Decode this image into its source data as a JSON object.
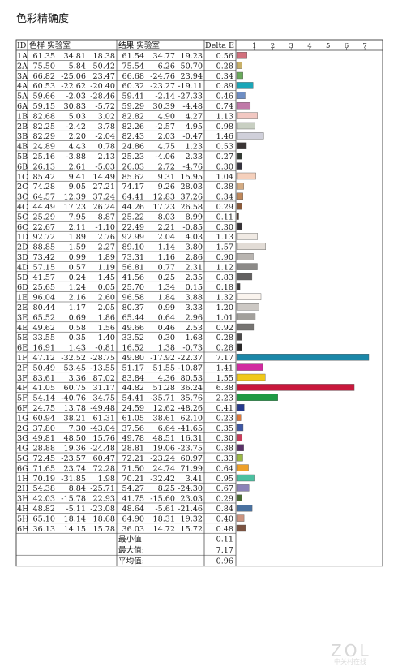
{
  "title": "色彩精确度",
  "watermark": "ZOL",
  "watermark_sub": "中关村在线",
  "headers": {
    "id": "ID",
    "sample": "色样 实验室",
    "result": "结果 实验室",
    "delta": "Delta E"
  },
  "summary": [
    {
      "label": "最小值",
      "value": "0.11"
    },
    {
      "label": "最大值:",
      "value": "7.17"
    },
    {
      "label": "平均值:",
      "value": "0.96"
    }
  ],
  "rows": [
    {
      "id": "1A",
      "s": [
        "61.35",
        "34.81",
        "18.38"
      ],
      "r": [
        "61.54",
        "34.77",
        "19.23"
      ],
      "d": "0.56",
      "color": "#d2707c"
    },
    {
      "id": "2A",
      "s": [
        "75.50",
        "5.84",
        "50.42"
      ],
      "r": [
        "75.54",
        "6.26",
        "50.70"
      ],
      "d": "0.28",
      "color": "#c8b068"
    },
    {
      "id": "3A",
      "s": [
        "66.82",
        "-25.06",
        "23.47"
      ],
      "r": [
        "66.68",
        "-24.76",
        "23.94"
      ],
      "d": "0.34",
      "color": "#6aaa5c"
    },
    {
      "id": "4A",
      "s": [
        "60.53",
        "-22.62",
        "-20.40"
      ],
      "r": [
        "60.32",
        "-23.27",
        "-19.11"
      ],
      "d": "0.89",
      "color": "#1aa6b8"
    },
    {
      "id": "5A",
      "s": [
        "59.66",
        "-2.03",
        "-28.46"
      ],
      "r": [
        "59.41",
        "-2.14",
        "-27.33"
      ],
      "d": "0.46",
      "color": "#6e8ec4"
    },
    {
      "id": "6A",
      "s": [
        "59.15",
        "30.83",
        "-5.72"
      ],
      "r": [
        "59.29",
        "30.39",
        "-4.48"
      ],
      "d": "0.74",
      "color": "#c07aa8"
    },
    {
      "id": "1B",
      "s": [
        "82.68",
        "5.03",
        "3.02"
      ],
      "r": [
        "82.82",
        "4.90",
        "4.27"
      ],
      "d": "1.13",
      "color": "#f2c8c2"
    },
    {
      "id": "2B",
      "s": [
        "82.25",
        "-2.42",
        "3.78"
      ],
      "r": [
        "82.26",
        "-2.57",
        "4.95"
      ],
      "d": "0.98",
      "color": "#c8cfc2"
    },
    {
      "id": "3B",
      "s": [
        "82.29",
        "2.20",
        "-2.04"
      ],
      "r": [
        "82.43",
        "2.03",
        "-0.47"
      ],
      "d": "1.46",
      "color": "#d0d0da"
    },
    {
      "id": "4B",
      "s": [
        "24.89",
        "4.43",
        "0.78"
      ],
      "r": [
        "24.86",
        "4.75",
        "1.23"
      ],
      "d": "0.53",
      "color": "#3a3434"
    },
    {
      "id": "5B",
      "s": [
        "25.16",
        "-3.88",
        "2.13"
      ],
      "r": [
        "25.23",
        "-4.06",
        "2.33"
      ],
      "d": "0.27",
      "color": "#333a33"
    },
    {
      "id": "6B",
      "s": [
        "26.13",
        "2.61",
        "-5.03"
      ],
      "r": [
        "26.03",
        "2.72",
        "-4.76"
      ],
      "d": "0.30",
      "color": "#36343e"
    },
    {
      "id": "1C",
      "s": [
        "85.42",
        "9.41",
        "14.49"
      ],
      "r": [
        "85.62",
        "9.31",
        "15.95"
      ],
      "d": "1.04",
      "color": "#f5d0bc"
    },
    {
      "id": "2C",
      "s": [
        "74.28",
        "9.05",
        "27.21"
      ],
      "r": [
        "74.17",
        "9.26",
        "28.03"
      ],
      "d": "0.38",
      "color": "#d4ac84"
    },
    {
      "id": "3C",
      "s": [
        "64.57",
        "12.39",
        "37.24"
      ],
      "r": [
        "64.41",
        "12.83",
        "37.26"
      ],
      "d": "0.34",
      "color": "#c0885a"
    },
    {
      "id": "4C",
      "s": [
        "44.49",
        "17.23",
        "26.24"
      ],
      "r": [
        "44.26",
        "17.23",
        "26.58"
      ],
      "d": "0.29",
      "color": "#8a5a3a"
    },
    {
      "id": "5C",
      "s": [
        "25.29",
        "7.95",
        "8.87"
      ],
      "r": [
        "25.22",
        "8.03",
        "8.99"
      ],
      "d": "0.11",
      "color": "#4a3228"
    },
    {
      "id": "6C",
      "s": [
        "22.67",
        "2.11",
        "-1.10"
      ],
      "r": [
        "22.49",
        "2.21",
        "-0.85"
      ],
      "d": "0.30",
      "color": "#363236"
    },
    {
      "id": "1D",
      "s": [
        "92.72",
        "1.89",
        "2.76"
      ],
      "r": [
        "92.99",
        "2.04",
        "4.03"
      ],
      "d": "1.13",
      "color": "#f0eae4"
    },
    {
      "id": "2D",
      "s": [
        "88.85",
        "1.59",
        "2.27"
      ],
      "r": [
        "89.10",
        "1.14",
        "3.80"
      ],
      "d": "1.57",
      "color": "#e2dcd6"
    },
    {
      "id": "3D",
      "s": [
        "73.42",
        "0.99",
        "1.89"
      ],
      "r": [
        "73.31",
        "1.16",
        "2.86"
      ],
      "d": "0.90",
      "color": "#b8b4b0"
    },
    {
      "id": "4D",
      "s": [
        "57.15",
        "0.57",
        "1.19"
      ],
      "r": [
        "56.81",
        "0.77",
        "2.31"
      ],
      "d": "1.12",
      "color": "#8c8a88"
    },
    {
      "id": "5D",
      "s": [
        "41.57",
        "0.24",
        "1.45"
      ],
      "r": [
        "41.56",
        "0.25",
        "2.35"
      ],
      "d": "0.83",
      "color": "#626060"
    },
    {
      "id": "6D",
      "s": [
        "25.65",
        "1.24",
        "0.05"
      ],
      "r": [
        "25.70",
        "1.34",
        "0.15"
      ],
      "d": "0.18",
      "color": "#3c3a3a"
    },
    {
      "id": "1E",
      "s": [
        "96.04",
        "2.16",
        "2.60"
      ],
      "r": [
        "96.58",
        "1.84",
        "3.88"
      ],
      "d": "1.32",
      "color": "#faf4ee"
    },
    {
      "id": "2E",
      "s": [
        "80.44",
        "1.17",
        "2.05"
      ],
      "r": [
        "80.37",
        "0.99",
        "3.33"
      ],
      "d": "1.20",
      "color": "#ccc8c4"
    },
    {
      "id": "3E",
      "s": [
        "65.52",
        "0.69",
        "1.86"
      ],
      "r": [
        "65.44",
        "0.64",
        "2.96"
      ],
      "d": "1.01",
      "color": "#a2a09c"
    },
    {
      "id": "4E",
      "s": [
        "49.62",
        "0.58",
        "1.56"
      ],
      "r": [
        "49.66",
        "0.46",
        "2.53"
      ],
      "d": "0.92",
      "color": "#767472"
    },
    {
      "id": "5E",
      "s": [
        "33.55",
        "0.35",
        "1.40"
      ],
      "r": [
        "33.52",
        "0.30",
        "1.68"
      ],
      "d": "0.28",
      "color": "#4c4a4a"
    },
    {
      "id": "6E",
      "s": [
        "16.91",
        "1.43",
        "-0.81"
      ],
      "r": [
        "16.52",
        "1.38",
        "-0.73"
      ],
      "d": "0.28",
      "color": "#2a2828"
    },
    {
      "id": "1F",
      "s": [
        "47.12",
        "-32.52",
        "-28.75"
      ],
      "r": [
        "49.80",
        "-17.92",
        "-22.37"
      ],
      "d": "7.17",
      "color": "#1b87a8"
    },
    {
      "id": "2F",
      "s": [
        "50.49",
        "53.45",
        "-13.55"
      ],
      "r": [
        "51.17",
        "51.55",
        "-10.87"
      ],
      "d": "1.41",
      "color": "#d22aa0"
    },
    {
      "id": "3F",
      "s": [
        "83.61",
        "3.36",
        "87.02"
      ],
      "r": [
        "83.84",
        "4.36",
        "80.53"
      ],
      "d": "1.55",
      "color": "#f0c818"
    },
    {
      "id": "4F",
      "s": [
        "41.05",
        "60.75",
        "31.17"
      ],
      "r": [
        "44.82",
        "51.28",
        "36.24"
      ],
      "d": "6.38",
      "color": "#c8183c"
    },
    {
      "id": "5F",
      "s": [
        "54.14",
        "-40.76",
        "34.75"
      ],
      "r": [
        "54.41",
        "-35.71",
        "35.76"
      ],
      "d": "2.23",
      "color": "#1e9a44"
    },
    {
      "id": "6F",
      "s": [
        "24.75",
        "13.78",
        "-49.48"
      ],
      "r": [
        "24.59",
        "12.62",
        "-48.26"
      ],
      "d": "0.41",
      "color": "#263a8e"
    },
    {
      "id": "1G",
      "s": [
        "60.94",
        "38.21",
        "61.31"
      ],
      "r": [
        "61.05",
        "38.61",
        "62.10"
      ],
      "d": "0.23",
      "color": "#e0783a"
    },
    {
      "id": "2G",
      "s": [
        "37.80",
        "7.30",
        "-43.04"
      ],
      "r": [
        "37.56",
        "6.64",
        "-41.65"
      ],
      "d": "0.35",
      "color": "#3e58a6"
    },
    {
      "id": "3G",
      "s": [
        "49.81",
        "48.50",
        "15.76"
      ],
      "r": [
        "49.78",
        "48.51",
        "16.31"
      ],
      "d": "0.30",
      "color": "#c83c5a"
    },
    {
      "id": "4G",
      "s": [
        "28.88",
        "19.36",
        "-24.48"
      ],
      "r": [
        "28.81",
        "19.06",
        "-23.75"
      ],
      "d": "0.38",
      "color": "#5a3268"
    },
    {
      "id": "5G",
      "s": [
        "72.45",
        "-23.57",
        "60.47"
      ],
      "r": [
        "72.21",
        "-23.24",
        "60.97"
      ],
      "d": "0.33",
      "color": "#9cba44"
    },
    {
      "id": "6G",
      "s": [
        "71.65",
        "23.74",
        "72.28"
      ],
      "r": [
        "71.50",
        "24.74",
        "71.99"
      ],
      "d": "0.64",
      "color": "#eea02a"
    },
    {
      "id": "1H",
      "s": [
        "70.19",
        "-31.85",
        "1.98"
      ],
      "r": [
        "70.21",
        "-32.42",
        "3.41"
      ],
      "d": "0.95",
      "color": "#4cc0a0"
    },
    {
      "id": "2H",
      "s": [
        "54.38",
        "8.84",
        "-25.71"
      ],
      "r": [
        "54.27",
        "8.25",
        "-24.30"
      ],
      "d": "0.67",
      "color": "#8c82b8"
    },
    {
      "id": "3H",
      "s": [
        "42.03",
        "-15.78",
        "22.93"
      ],
      "r": [
        "41.75",
        "-15.60",
        "23.03"
      ],
      "d": "0.29",
      "color": "#4a6a34"
    },
    {
      "id": "4H",
      "s": [
        "48.82",
        "-5.11",
        "-23.08"
      ],
      "r": [
        "48.64",
        "-5.61",
        "-21.46"
      ],
      "d": "0.84",
      "color": "#4a72a0"
    },
    {
      "id": "5H",
      "s": [
        "65.10",
        "18.14",
        "18.68"
      ],
      "r": [
        "64.90",
        "18.31",
        "19.32"
      ],
      "d": "0.40",
      "color": "#cc9480"
    },
    {
      "id": "6H",
      "s": [
        "36.13",
        "14.15",
        "15.78"
      ],
      "r": [
        "36.03",
        "14.72",
        "15.72"
      ],
      "d": "0.48",
      "color": "#7a5240"
    }
  ],
  "chart_data": {
    "type": "bar",
    "orientation": "horizontal",
    "xlabel": "Delta E",
    "xticks": [
      "1",
      "2",
      "3",
      "4",
      "5",
      "6",
      "7"
    ],
    "xlim": [
      0,
      7.17
    ],
    "categories": [
      "1A",
      "2A",
      "3A",
      "4A",
      "5A",
      "6A",
      "1B",
      "2B",
      "3B",
      "4B",
      "5B",
      "6B",
      "1C",
      "2C",
      "3C",
      "4C",
      "5C",
      "6C",
      "1D",
      "2D",
      "3D",
      "4D",
      "5D",
      "6D",
      "1E",
      "2E",
      "3E",
      "4E",
      "5E",
      "6E",
      "1F",
      "2F",
      "3F",
      "4F",
      "5F",
      "6F",
      "1G",
      "2G",
      "3G",
      "4G",
      "5G",
      "6G",
      "1H",
      "2H",
      "3H",
      "4H",
      "5H",
      "6H"
    ],
    "values": [
      0.56,
      0.28,
      0.34,
      0.89,
      0.46,
      0.74,
      1.13,
      0.98,
      1.46,
      0.53,
      0.27,
      0.3,
      1.04,
      0.38,
      0.34,
      0.29,
      0.11,
      0.3,
      1.13,
      1.57,
      0.9,
      1.12,
      0.83,
      0.18,
      1.32,
      1.2,
      1.01,
      0.92,
      0.28,
      0.28,
      7.17,
      1.41,
      1.55,
      6.38,
      2.23,
      0.41,
      0.23,
      0.35,
      0.3,
      0.38,
      0.33,
      0.64,
      0.95,
      0.67,
      0.29,
      0.84,
      0.4,
      0.48
    ],
    "grid": false
  }
}
